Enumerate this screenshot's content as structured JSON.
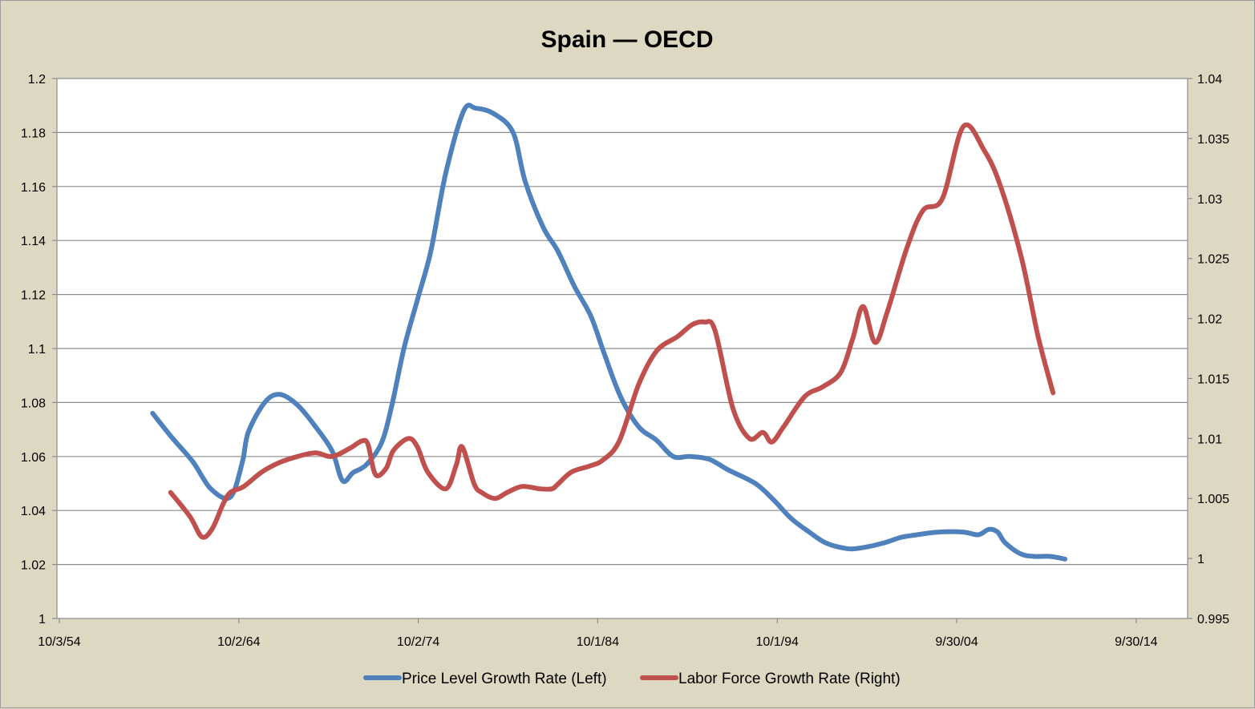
{
  "chart_data": {
    "type": "line",
    "title": "Spain — OECD",
    "xlabel": "",
    "ylabel_left": "",
    "ylabel_right": "",
    "x_axis": {
      "type": "date",
      "range": [
        "1954-10-03",
        "2018-01-01"
      ],
      "ticks": [
        {
          "date": "1954-10-03",
          "label": "10/3/54"
        },
        {
          "date": "1964-10-02",
          "label": "10/2/64"
        },
        {
          "date": "1974-10-02",
          "label": "10/2/74"
        },
        {
          "date": "1984-10-01",
          "label": "10/1/84"
        },
        {
          "date": "1994-10-01",
          "label": "10/1/94"
        },
        {
          "date": "2004-09-30",
          "label": "9/30/04"
        },
        {
          "date": "2014-09-30",
          "label": "9/30/14"
        }
      ]
    },
    "y_left": {
      "range": [
        1,
        1.2
      ],
      "ticks": [
        "1",
        "1.02",
        "1.04",
        "1.06",
        "1.08",
        "1.1",
        "1.12",
        "1.14",
        "1.16",
        "1.18",
        "1.2"
      ]
    },
    "y_right": {
      "range": [
        0.995,
        1.04
      ],
      "ticks": [
        "0.995",
        "1",
        "1.005",
        "1.01",
        "1.015",
        "1.02",
        "1.025",
        "1.03",
        "1.035",
        "1.04"
      ]
    },
    "grid": true,
    "legend_position": "bottom",
    "series": [
      {
        "name": "Price Level Growth Rate (Left)",
        "axis": "left",
        "color": "#4f81bd",
        "points": [
          [
            "1960-02-01",
            1.076
          ],
          [
            "1961-03-01",
            1.067
          ],
          [
            "1962-05-01",
            1.058
          ],
          [
            "1963-05-01",
            1.048
          ],
          [
            "1964-06-01",
            1.045
          ],
          [
            "1965-02-01",
            1.058
          ],
          [
            "1965-06-01",
            1.069
          ],
          [
            "1966-05-01",
            1.08
          ],
          [
            "1967-03-01",
            1.083
          ],
          [
            "1968-03-01",
            1.079
          ],
          [
            "1969-03-01",
            1.071
          ],
          [
            "1970-02-01",
            1.062
          ],
          [
            "1970-09-01",
            1.051
          ],
          [
            "1971-04-01",
            1.054
          ],
          [
            "1972-01-01",
            1.057
          ],
          [
            "1972-11-01",
            1.065
          ],
          [
            "1973-06-01",
            1.079
          ],
          [
            "1974-02-01",
            1.1
          ],
          [
            "1974-11-01",
            1.118
          ],
          [
            "1975-08-01",
            1.136
          ],
          [
            "1976-06-01",
            1.165
          ],
          [
            "1977-06-01",
            1.188
          ],
          [
            "1978-02-01",
            1.189
          ],
          [
            "1979-02-01",
            1.187
          ],
          [
            "1980-03-01",
            1.18
          ],
          [
            "1980-11-01",
            1.162
          ],
          [
            "1981-11-01",
            1.145
          ],
          [
            "1982-09-01",
            1.136
          ],
          [
            "1983-08-01",
            1.123
          ],
          [
            "1984-07-01",
            1.112
          ],
          [
            "1985-04-01",
            1.098
          ],
          [
            "1986-03-01",
            1.082
          ],
          [
            "1987-03-01",
            1.071
          ],
          [
            "1988-03-01",
            1.066
          ],
          [
            "1989-02-01",
            1.06
          ],
          [
            "1990-01-01",
            1.06
          ],
          [
            "1991-02-01",
            1.059
          ],
          [
            "1992-03-01",
            1.055
          ],
          [
            "1993-09-01",
            1.05
          ],
          [
            "1994-09-01",
            1.044
          ],
          [
            "1995-09-01",
            1.037
          ],
          [
            "1996-09-01",
            1.032
          ],
          [
            "1997-08-01",
            1.028
          ],
          [
            "1998-09-01",
            1.026
          ],
          [
            "1999-06-01",
            1.026
          ],
          [
            "2000-11-01",
            1.028
          ],
          [
            "2001-10-01",
            1.03
          ],
          [
            "2002-09-01",
            1.031
          ],
          [
            "2003-11-01",
            1.032
          ],
          [
            "2005-04-01",
            1.032
          ],
          [
            "2006-02-01",
            1.031
          ],
          [
            "2006-09-01",
            1.033
          ],
          [
            "2007-03-01",
            1.032
          ],
          [
            "2007-08-01",
            1.028
          ],
          [
            "2008-06-01",
            1.024
          ],
          [
            "2009-03-01",
            1.023
          ],
          [
            "2010-02-01",
            1.023
          ],
          [
            "2010-12-01",
            1.022
          ]
        ]
      },
      {
        "name": "Labor Force Growth Rate (Right)",
        "axis": "right",
        "color": "#c0504d",
        "points": [
          [
            "1961-02-01",
            1.0055
          ],
          [
            "1962-03-01",
            1.0035
          ],
          [
            "1962-11-01",
            1.0018
          ],
          [
            "1963-06-01",
            1.0025
          ],
          [
            "1964-01-01",
            1.0045
          ],
          [
            "1964-06-01",
            1.0055
          ],
          [
            "1965-03-01",
            1.006
          ],
          [
            "1966-03-01",
            1.0072
          ],
          [
            "1967-03-01",
            1.008
          ],
          [
            "1968-03-01",
            1.0085
          ],
          [
            "1969-03-01",
            1.0088
          ],
          [
            "1970-02-01",
            1.0085
          ],
          [
            "1971-02-01",
            1.0092
          ],
          [
            "1971-10-01",
            1.0098
          ],
          [
            "1972-02-01",
            1.0095
          ],
          [
            "1972-07-01",
            1.007
          ],
          [
            "1973-02-01",
            1.0075
          ],
          [
            "1973-07-01",
            1.009
          ],
          [
            "1974-05-01",
            1.01
          ],
          [
            "1974-11-01",
            1.0093
          ],
          [
            "1975-06-01",
            1.0072
          ],
          [
            "1976-06-01",
            1.0058
          ],
          [
            "1977-01-01",
            1.0078
          ],
          [
            "1977-05-01",
            1.0093
          ],
          [
            "1978-01-01",
            1.0062
          ],
          [
            "1978-06-01",
            1.0055
          ],
          [
            "1979-03-01",
            1.005
          ],
          [
            "1979-11-01",
            1.0055
          ],
          [
            "1980-09-01",
            1.006
          ],
          [
            "1981-09-01",
            1.0058
          ],
          [
            "1982-05-01",
            1.0058
          ],
          [
            "1982-09-01",
            1.0062
          ],
          [
            "1983-06-01",
            1.0072
          ],
          [
            "1984-06-01",
            1.0077
          ],
          [
            "1985-03-01",
            1.0082
          ],
          [
            "1986-02-01",
            1.0098
          ],
          [
            "1987-03-01",
            1.0145
          ],
          [
            "1988-03-01",
            1.0173
          ],
          [
            "1989-05-01",
            1.0185
          ],
          [
            "1990-03-01",
            1.0195
          ],
          [
            "1990-11-01",
            1.0197
          ],
          [
            "1991-06-01",
            1.019
          ],
          [
            "1992-06-01",
            1.0125
          ],
          [
            "1993-05-01",
            1.01
          ],
          [
            "1994-02-01",
            1.0105
          ],
          [
            "1994-08-01",
            1.0097
          ],
          [
            "1995-04-01",
            1.011
          ],
          [
            "1996-06-01",
            1.0135
          ],
          [
            "1997-06-01",
            1.0143
          ],
          [
            "1998-06-01",
            1.0155
          ],
          [
            "1999-02-01",
            1.0183
          ],
          [
            "1999-09-01",
            1.021
          ],
          [
            "2000-05-01",
            1.018
          ],
          [
            "2001-01-01",
            1.0205
          ],
          [
            "2002-02-01",
            1.0258
          ],
          [
            "2003-01-01",
            1.029
          ],
          [
            "2004-02-01",
            1.03
          ],
          [
            "2005-04-01",
            1.036
          ],
          [
            "2006-06-01",
            1.034
          ],
          [
            "2007-05-01",
            1.031
          ],
          [
            "2008-07-01",
            1.025
          ],
          [
            "2009-06-01",
            1.0185
          ],
          [
            "2010-04-01",
            1.0138
          ]
        ]
      }
    ]
  }
}
